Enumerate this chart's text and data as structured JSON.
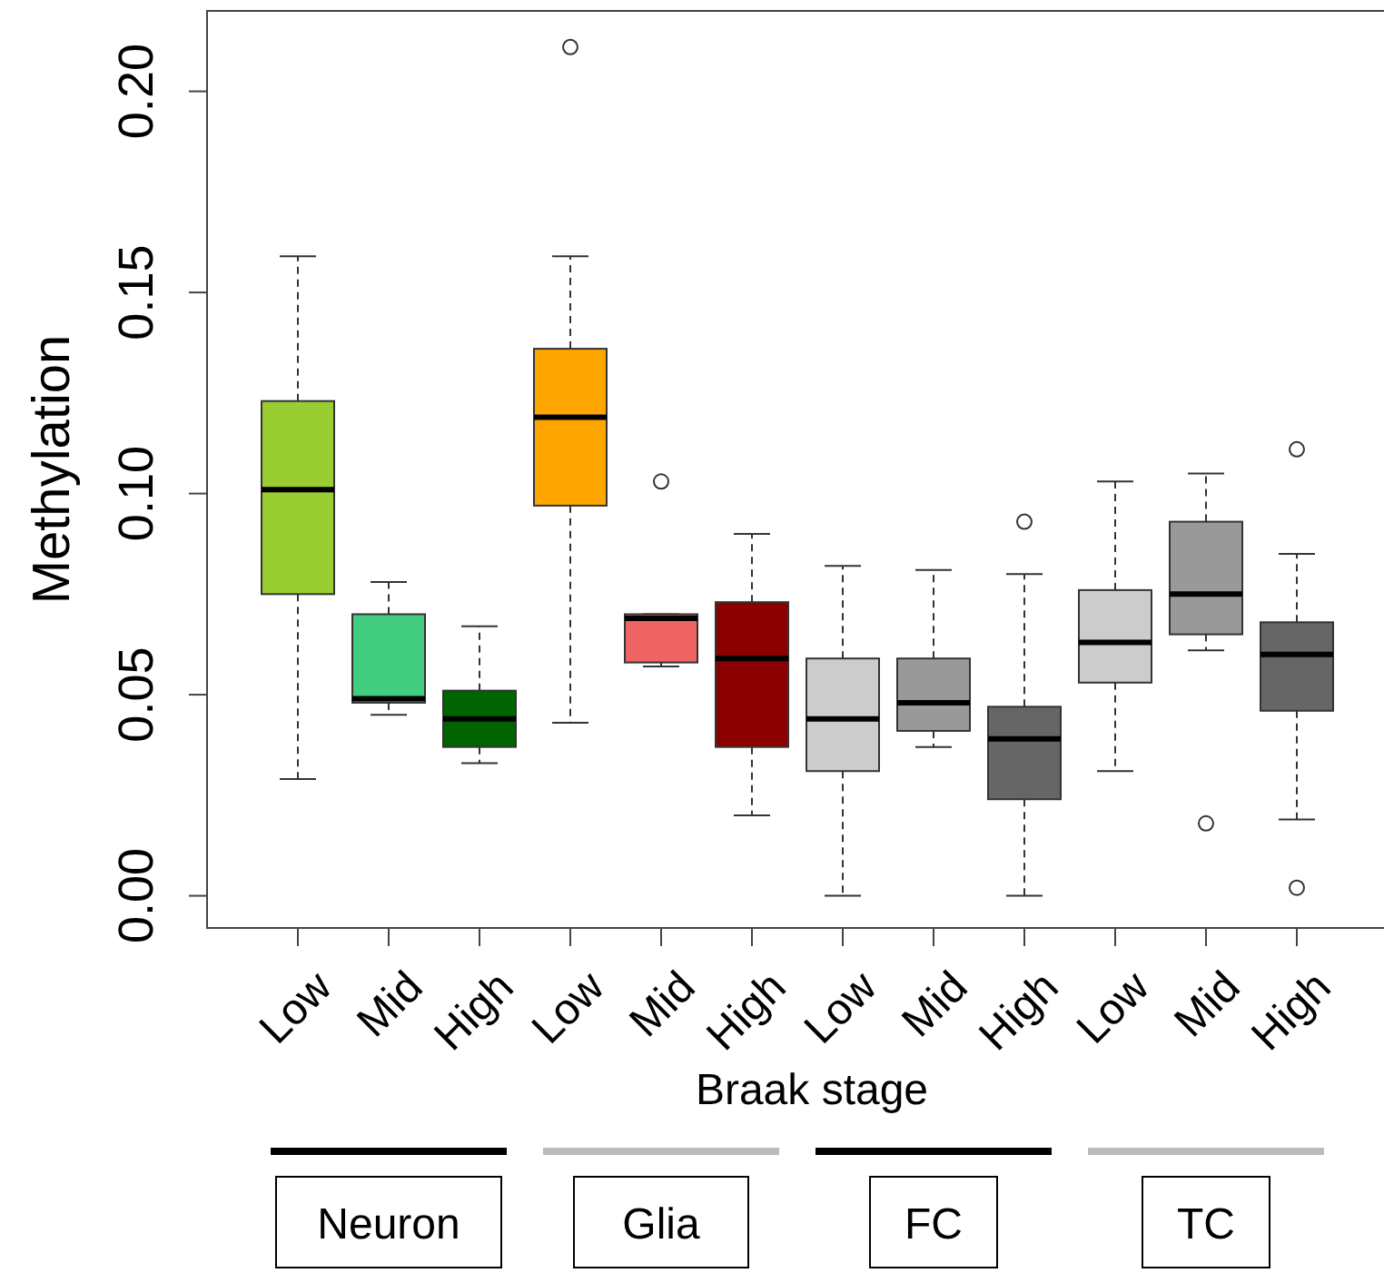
{
  "chart_data": {
    "type": "box",
    "xlabel": "Braak stage",
    "ylabel": "Methylation",
    "categories": [
      "Low",
      "Mid",
      "High",
      "Low",
      "Mid",
      "High",
      "Low",
      "Mid",
      "High",
      "Low",
      "Mid",
      "High"
    ],
    "colors": [
      "#9acd32",
      "#43cd80",
      "#006400",
      "#ffa500",
      "#ee6363",
      "#8b0000",
      "#cccccc",
      "#999999",
      "#666666",
      "#cccccc",
      "#999999",
      "#666666"
    ],
    "boxes": [
      {
        "low": 0.029,
        "q1": 0.075,
        "median": 0.101,
        "q3": 0.123,
        "high": 0.159
      },
      {
        "low": 0.045,
        "q1": 0.048,
        "median": 0.049,
        "q3": 0.07,
        "high": 0.078
      },
      {
        "low": 0.033,
        "q1": 0.037,
        "median": 0.044,
        "q3": 0.051,
        "high": 0.067
      },
      {
        "low": 0.043,
        "q1": 0.097,
        "median": 0.119,
        "q3": 0.136,
        "high": 0.159,
        "outliers": [
          0.211
        ]
      },
      {
        "low": 0.057,
        "q1": 0.058,
        "median": 0.069,
        "q3": 0.07,
        "high": 0.07,
        "outliers": [
          0.103
        ]
      },
      {
        "low": 0.02,
        "q1": 0.037,
        "median": 0.059,
        "q3": 0.073,
        "high": 0.09
      },
      {
        "low": 0.0,
        "q1": 0.031,
        "median": 0.044,
        "q3": 0.059,
        "high": 0.082
      },
      {
        "low": 0.037,
        "q1": 0.041,
        "median": 0.048,
        "q3": 0.059,
        "high": 0.081
      },
      {
        "low": 0.0,
        "q1": 0.024,
        "median": 0.039,
        "q3": 0.047,
        "high": 0.08,
        "outliers": [
          0.093
        ]
      },
      {
        "low": 0.031,
        "q1": 0.053,
        "median": 0.063,
        "q3": 0.076,
        "high": 0.103
      },
      {
        "low": 0.061,
        "q1": 0.065,
        "median": 0.075,
        "q3": 0.093,
        "high": 0.105,
        "outliers": [
          0.018
        ]
      },
      {
        "low": 0.019,
        "q1": 0.046,
        "median": 0.06,
        "q3": 0.068,
        "high": 0.085,
        "outliers": [
          0.111,
          0.002
        ]
      }
    ],
    "ylim": [
      -0.008,
      0.22
    ],
    "yticks": [
      {
        "value": 0,
        "label": "0.00"
      },
      {
        "value": 0.05,
        "label": "0.05"
      },
      {
        "value": 0.1,
        "label": "0.10"
      },
      {
        "value": 0.15,
        "label": "0.15"
      },
      {
        "value": 0.2,
        "label": "0.20"
      }
    ],
    "grid": false,
    "annotations": [
      "Neuron",
      "Glia",
      "FC",
      "TC"
    ]
  }
}
